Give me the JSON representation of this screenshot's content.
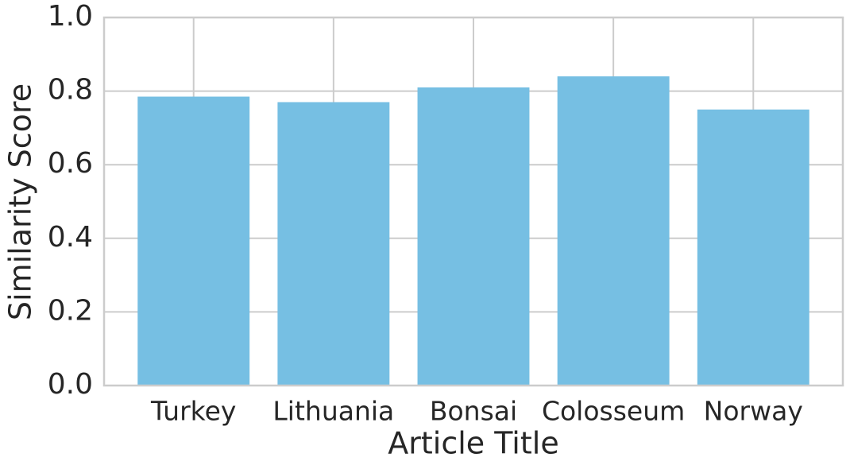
{
  "chart_data": {
    "type": "bar",
    "x_label": "Article Title",
    "y_label": "Similarity Score",
    "categories": [
      "Turkey",
      "Lithuania",
      "Bonsai",
      "Colosseum",
      "Norway"
    ],
    "values": [
      0.785,
      0.77,
      0.81,
      0.84,
      0.75
    ],
    "color": "#76bfe3",
    "ylim": [
      0,
      1
    ],
    "yticks": [
      {
        "value": 0,
        "label": "0.0"
      },
      0.2,
      0.4,
      0.6,
      0.8,
      {
        "value": 1,
        "label": "1.0"
      }
    ],
    "grid": true
  }
}
